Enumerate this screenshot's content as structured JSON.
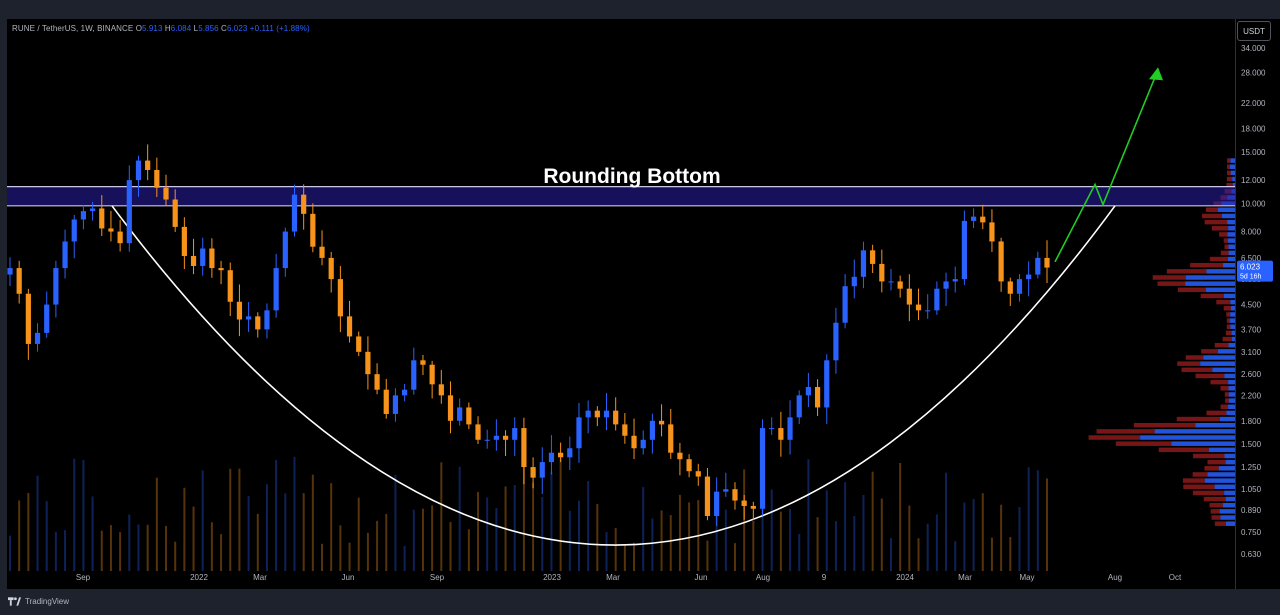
{
  "header": {
    "symbol_label": "RUNE / TetherUS, 1W, BINANCE",
    "open_label": "O",
    "open_value": "5.913",
    "high_label": "H",
    "high_value": "6.084",
    "low_label": "L",
    "low_value": "5.856",
    "close_label": "C",
    "close_value": "6.023",
    "change": "+0.111 (+1.88%)"
  },
  "toolbar": {
    "currency_button": "USDT"
  },
  "brand": {
    "name": "TradingView"
  },
  "colors": {
    "up": "#2962ff",
    "down": "#f7931a",
    "zone_fill": "#2a1fa8",
    "curve": "#ffffff",
    "arrow": "#22cc22",
    "vp_up": "#2962ff",
    "vp_down": "#8b1a1a",
    "axis_text": "#b2b5be"
  },
  "chart_data": {
    "type": "candlestick",
    "title": "Rounding Bottom",
    "scale": "log",
    "ylim": [
      0.56,
      40
    ],
    "price_ticks": [
      "34.000",
      "28.000",
      "22.000",
      "18.000",
      "15.000",
      "12.000",
      "10.000",
      "8.000",
      "6.500",
      "5.500",
      "4.500",
      "3.700",
      "3.100",
      "2.600",
      "2.200",
      "1.800",
      "1.500",
      "1.250",
      "1.050",
      "0.890",
      "0.750",
      "0.630"
    ],
    "time_ticks": [
      "Sep",
      "2022",
      "Mar",
      "Jun",
      "Sep",
      "2023",
      "Mar",
      "Jun",
      "Aug",
      "9",
      "2024",
      "Mar",
      "May",
      "Aug",
      "Oct"
    ],
    "last_price": "6.023",
    "countdown": "5d 16h",
    "resistance_zone": {
      "low": 9.8,
      "high": 11.4
    },
    "annotation": "Rounding Bottom",
    "weekly_close": [
      6.0,
      4.9,
      3.3,
      3.6,
      4.5,
      6.0,
      7.4,
      8.8,
      9.4,
      9.6,
      8.2,
      8.0,
      7.3,
      12.0,
      14.0,
      13.0,
      11.3,
      10.3,
      8.3,
      6.6,
      6.1,
      7.0,
      6.0,
      5.9,
      4.6,
      4.0,
      4.1,
      3.7,
      4.3,
      6.0,
      8.0,
      10.7,
      9.2,
      7.1,
      6.5,
      5.5,
      4.1,
      3.5,
      3.1,
      2.6,
      2.3,
      1.9,
      2.2,
      2.3,
      2.9,
      2.8,
      2.4,
      2.2,
      1.8,
      2.0,
      1.75,
      1.55,
      1.55,
      1.6,
      1.55,
      1.7,
      1.25,
      1.15,
      1.3,
      1.4,
      1.35,
      1.45,
      1.85,
      1.95,
      1.85,
      1.95,
      1.75,
      1.6,
      1.45,
      1.55,
      1.8,
      1.75,
      1.4,
      1.33,
      1.21,
      1.16,
      0.85,
      1.03,
      1.05,
      0.96,
      0.92,
      0.9,
      1.7,
      1.7,
      1.55,
      1.85,
      2.2,
      2.35,
      2.0,
      2.9,
      3.9,
      5.2,
      5.6,
      6.9,
      6.2,
      5.4,
      5.4,
      5.1,
      4.5,
      4.3,
      4.3,
      5.1,
      5.4,
      5.5,
      8.7,
      9.0,
      8.6,
      7.4,
      5.4,
      4.9,
      5.5,
      5.7,
      6.5,
      6.023
    ],
    "volume_profile_levels": 60
  }
}
